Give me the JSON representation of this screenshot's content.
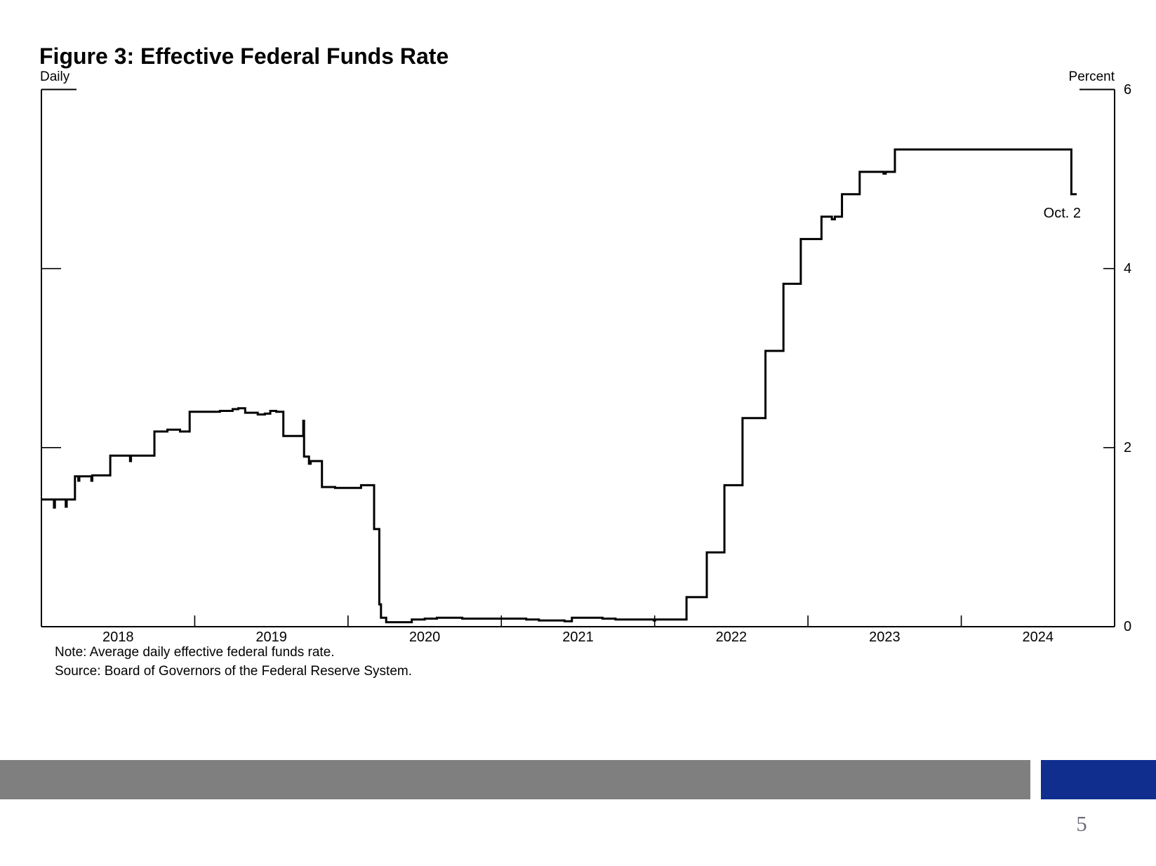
{
  "page": {
    "page_number": "5",
    "footer": {
      "gray_bar_color": "#7F7F7F",
      "blue_bar_color": "#0F2E8E"
    }
  },
  "chart_data": {
    "type": "line",
    "title": "Figure 3: Effective Federal Funds Rate",
    "frequency_label": "Daily",
    "unit_label": "Percent",
    "end_annotation": "Oct. 2",
    "note": "Note: Average daily effective federal funds rate.",
    "source": "Source: Board of Governors of the Federal Reserve System.",
    "line_color": "#000000",
    "axis_color": "#000000",
    "x_range": [
      2018.0,
      2025.0
    ],
    "ylim": [
      0,
      6
    ],
    "y_ticks": [
      0,
      2,
      4,
      6
    ],
    "x_tick_years": [
      "2018",
      "2019",
      "2020",
      "2021",
      "2022",
      "2023",
      "2024"
    ],
    "grid": false,
    "legend": "none",
    "series": [
      {
        "name": "Effective federal funds rate (percent, daily average)",
        "step": true,
        "end_x": 2024.753,
        "points": [
          [
            2018.0,
            1.42
          ],
          [
            2018.082,
            1.33
          ],
          [
            2018.088,
            1.42
          ],
          [
            2018.159,
            1.34
          ],
          [
            2018.165,
            1.42
          ],
          [
            2018.219,
            1.68
          ],
          [
            2018.241,
            1.63
          ],
          [
            2018.247,
            1.68
          ],
          [
            2018.326,
            1.63
          ],
          [
            2018.332,
            1.69
          ],
          [
            2018.449,
            1.91
          ],
          [
            2018.578,
            1.85
          ],
          [
            2018.584,
            1.91
          ],
          [
            2018.737,
            2.18
          ],
          [
            2018.822,
            2.2
          ],
          [
            2018.904,
            2.18
          ],
          [
            2018.967,
            2.4
          ],
          [
            2019.082,
            2.4
          ],
          [
            2019.164,
            2.41
          ],
          [
            2019.247,
            2.43
          ],
          [
            2019.284,
            2.44
          ],
          [
            2019.329,
            2.39
          ],
          [
            2019.411,
            2.37
          ],
          [
            2019.457,
            2.38
          ],
          [
            2019.493,
            2.41
          ],
          [
            2019.532,
            2.4
          ],
          [
            2019.578,
            2.13
          ],
          [
            2019.708,
            2.3
          ],
          [
            2019.713,
            1.9
          ],
          [
            2019.745,
            1.82
          ],
          [
            2019.756,
            1.85
          ],
          [
            2019.83,
            1.56
          ],
          [
            2019.916,
            1.55
          ],
          [
            2020.085,
            1.58
          ],
          [
            2020.17,
            1.09
          ],
          [
            2020.204,
            0.25
          ],
          [
            2020.215,
            0.1
          ],
          [
            2020.249,
            0.05
          ],
          [
            2020.416,
            0.08
          ],
          [
            2020.5,
            0.09
          ],
          [
            2020.58,
            0.1
          ],
          [
            2020.745,
            0.09
          ],
          [
            2021.162,
            0.08
          ],
          [
            2021.245,
            0.07
          ],
          [
            2021.412,
            0.06
          ],
          [
            2021.46,
            0.1
          ],
          [
            2021.66,
            0.09
          ],
          [
            2021.745,
            0.08
          ],
          [
            2021.995,
            0.07
          ],
          [
            2022.003,
            0.08
          ],
          [
            2022.208,
            0.33
          ],
          [
            2022.34,
            0.83
          ],
          [
            2022.455,
            1.58
          ],
          [
            2022.573,
            2.33
          ],
          [
            2022.723,
            3.08
          ],
          [
            2022.84,
            3.83
          ],
          [
            2022.953,
            4.33
          ],
          [
            2023.088,
            4.58
          ],
          [
            2023.156,
            4.55
          ],
          [
            2023.175,
            4.58
          ],
          [
            2023.222,
            4.83
          ],
          [
            2023.337,
            5.08
          ],
          [
            2023.493,
            5.06
          ],
          [
            2023.507,
            5.08
          ],
          [
            2023.567,
            5.33
          ],
          [
            2024.718,
            4.83
          ]
        ]
      }
    ]
  }
}
